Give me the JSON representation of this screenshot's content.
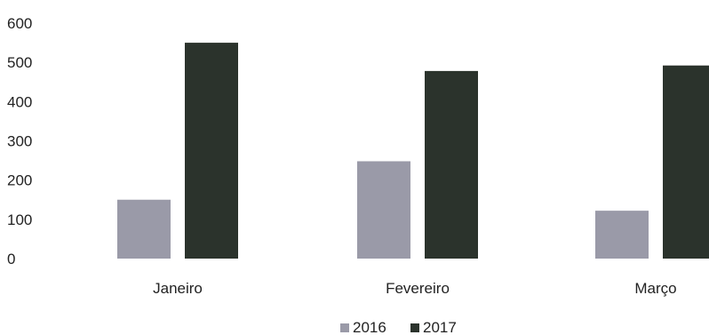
{
  "chart_data": {
    "type": "bar",
    "categories": [
      "Janeiro",
      "Fevereiro",
      "Março"
    ],
    "series": [
      {
        "name": "2016",
        "color": "#9a9aa8",
        "values": [
          150,
          248,
          122
        ]
      },
      {
        "name": "2017",
        "color": "#2b332c",
        "values": [
          550,
          478,
          492
        ]
      }
    ],
    "yticks": [
      "0",
      "100",
      "200",
      "300",
      "400",
      "500",
      "600"
    ],
    "ylim": [
      0,
      600
    ],
    "grid": false,
    "legend": "bottom-center"
  }
}
